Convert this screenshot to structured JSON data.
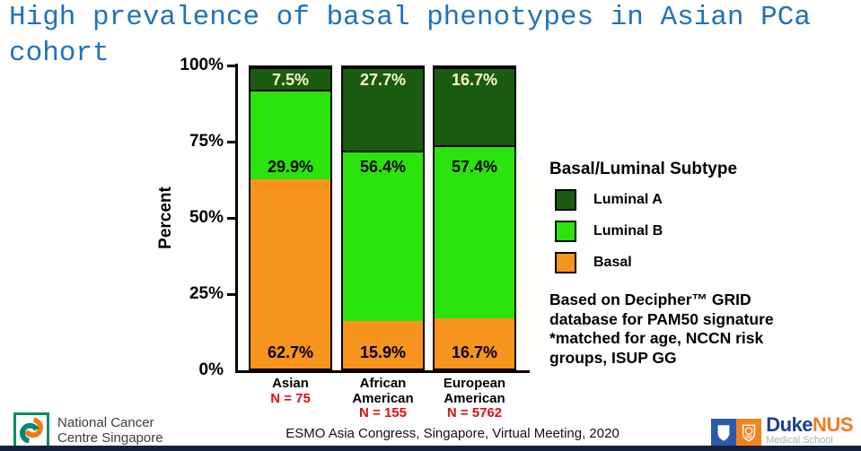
{
  "title": "High prevalence of basal phenotypes in Asian PCa cohort",
  "chart_data": {
    "type": "bar",
    "stacked": true,
    "title": "",
    "xlabel": "",
    "ylabel": "Percent",
    "ylim": [
      0,
      100
    ],
    "grid": false,
    "ytick_labels": [
      "0%",
      "25%",
      "50%",
      "75%",
      "100%"
    ],
    "ytick_values": [
      0,
      25,
      50,
      75,
      100
    ],
    "categories": [
      [
        "Asian"
      ],
      [
        "African",
        "American"
      ],
      [
        "European",
        "American"
      ]
    ],
    "sample_sizes": [
      "N = 75",
      "N = 155",
      "N = 5762"
    ],
    "series": [
      {
        "name": "Basal",
        "values": [
          62.7,
          15.9,
          16.7
        ],
        "color": "#F7941E",
        "label_color": "#000000"
      },
      {
        "name": "Luminal B",
        "values": [
          29.9,
          56.4,
          57.4
        ],
        "color": "#2BE30D",
        "label_color": "#000000"
      },
      {
        "name": "Luminal A",
        "values": [
          7.5,
          27.7,
          16.7
        ],
        "color": "#1A5C0F",
        "label_color": "#FFF9C8"
      }
    ],
    "legend": {
      "title": "Basal/Luminal Subtype",
      "position": "right",
      "entries": [
        "Luminal A",
        "Luminal B",
        "Basal"
      ]
    }
  },
  "note_lines": [
    "Based on Decipher™ GRID",
    "database for PAM50 signature",
    "*matched for age, NCCN risk",
    "groups, ISUP GG"
  ],
  "footer": {
    "conference": "ESMO Asia Congress, Singapore, Virtual Meeting, 2020"
  },
  "logos": {
    "nccs": {
      "line1": "National Cancer",
      "line2": "Centre Singapore"
    },
    "dukenus": {
      "duke": "Duke",
      "nus": "NUS",
      "subtitle": "Medical School"
    }
  },
  "colors": {
    "title_blue": "#1E73BE",
    "sample_red": "#DE1010",
    "basal_orange": "#F7941E",
    "luminal_b_green": "#2BE30D",
    "luminal_a_dark_green": "#1A5C0F",
    "bottom_bar_navy": "#15213C"
  }
}
